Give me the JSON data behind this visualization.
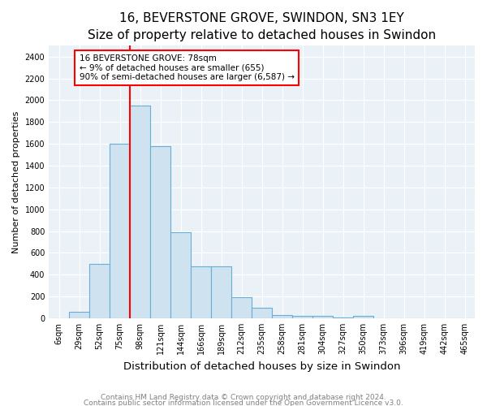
{
  "title": "16, BEVERSTONE GROVE, SWINDON, SN3 1EY",
  "subtitle": "Size of property relative to detached houses in Swindon",
  "xlabel": "Distribution of detached houses by size in Swindon",
  "ylabel": "Number of detached properties",
  "bar_labels": [
    "6sqm",
    "29sqm",
    "52sqm",
    "75sqm",
    "98sqm",
    "121sqm",
    "144sqm",
    "166sqm",
    "189sqm",
    "212sqm",
    "235sqm",
    "258sqm",
    "281sqm",
    "304sqm",
    "327sqm",
    "350sqm",
    "373sqm",
    "396sqm",
    "419sqm",
    "442sqm",
    "465sqm"
  ],
  "bar_values": [
    0,
    60,
    500,
    1600,
    1950,
    1580,
    790,
    475,
    475,
    195,
    95,
    30,
    25,
    20,
    10,
    20,
    0,
    0,
    0,
    0,
    0
  ],
  "bar_color": "#cfe2f0",
  "bar_edge_color": "#6aaed6",
  "vline_x_index": 3.5,
  "vline_color": "red",
  "annotation_text": "16 BEVERSTONE GROVE: 78sqm\n← 9% of detached houses are smaller (655)\n90% of semi-detached houses are larger (6,587) →",
  "annotation_box_color": "white",
  "annotation_box_edge": "red",
  "ylim": [
    0,
    2500
  ],
  "yticks": [
    0,
    200,
    400,
    600,
    800,
    1000,
    1200,
    1400,
    1600,
    1800,
    2000,
    2200,
    2400
  ],
  "footnote1": "Contains HM Land Registry data © Crown copyright and database right 2024.",
  "footnote2": "Contains public sector information licensed under the Open Government Licence v3.0.",
  "background_color": "#ffffff",
  "plot_bg_color": "#eaf2f8",
  "grid_color": "#ffffff",
  "title_fontsize": 11,
  "subtitle_fontsize": 9.5,
  "xlabel_fontsize": 9.5,
  "ylabel_fontsize": 8,
  "tick_fontsize": 7,
  "footnote_fontsize": 6.5,
  "annotation_fontsize": 7.5
}
